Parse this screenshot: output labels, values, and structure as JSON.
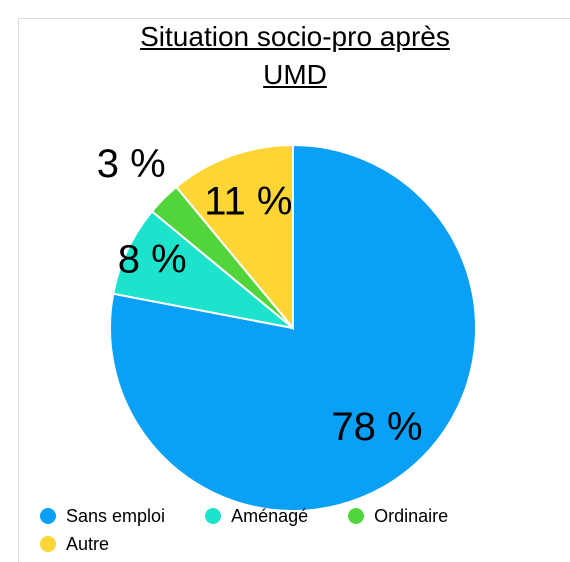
{
  "chart_data": {
    "type": "pie",
    "title": "Situation socio-pro après UMD",
    "categories": [
      "Sans emploi",
      "Aménagé",
      "Ordinaire",
      "Autre"
    ],
    "values": [
      78,
      8,
      3,
      11
    ],
    "value_labels": [
      "78 %",
      "8 %",
      "3 %",
      "11 %"
    ],
    "colors": [
      "#0aa0f5",
      "#1de3cd",
      "#52d43b",
      "#fdd535"
    ],
    "legend": "bottom"
  }
}
